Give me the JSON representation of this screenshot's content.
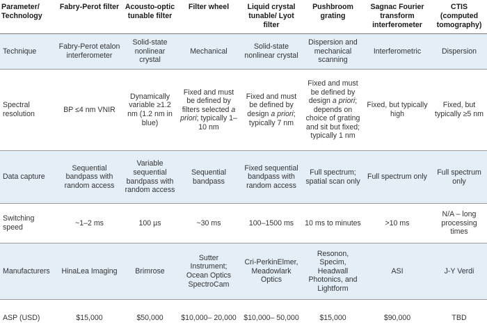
{
  "headers": [
    "Parameter/ Technology",
    "Fabry-Perot filter",
    "Acousto-optic tunable filter",
    "Filter wheel",
    "Liquid crystal tunable/ Lyot filter",
    "Pushbroom grating",
    "Sagnac Fourier transform interferometer",
    "CTIS (computed tomography)"
  ],
  "rows": [
    {
      "label": "Technique",
      "cells": [
        "Fabry-Perot etalon interferometer",
        "Solid-state nonlinear crystal",
        "Mechanical",
        "Solid-state nonlinear crystal",
        "Dispersion and mechanical scanning",
        "Interferometric",
        "Dispersion"
      ]
    },
    {
      "label": "Spectral resolution",
      "cells": [
        "BP ≤4 nm VNIR",
        "Dynamically variable ≥1.2 nm (1.2 nm in blue)",
        "Fixed and must be defined by filters selected a priori; typically 1–10 nm",
        "Fixed and must be defined by design a priori; typically 7 nm",
        "Fixed and must be defined by design a priori; depends on choice of grating and sit but fixed; typically 1 nm",
        "Fixed, but typically high",
        "Fixed, but typically ≥5 nm"
      ]
    },
    {
      "label": "Data capture",
      "cells": [
        "Sequential bandpass with random access",
        "Variable sequential bandpass with random access",
        "Sequential bandpass",
        "Fixed sequential bandpass with random access",
        "Full spectrum; spatial scan only",
        "Full spectrum only",
        "Full spectrum only"
      ]
    },
    {
      "label": "Switching speed",
      "cells": [
        "~1–2 ms",
        "100 µs",
        "~30 ms",
        "100–1500 ms",
        "10 ms to minutes",
        ">10 ms",
        "N/A – long processing times"
      ]
    },
    {
      "label": "Manufacturers",
      "cells": [
        "HinaLea Imaging",
        "Brimrose",
        "Sutter Instrument; Ocean Optics SpectroCam",
        "Cri-PerkinElmer, Meadowlark Optics",
        "Resonon, Specim, Headwall Photonics, and Lightform",
        "ASI",
        "J-Y Verdi"
      ]
    },
    {
      "label": "ASP (USD)",
      "cells": [
        "$15,000",
        "$50,000",
        "$10,000– 20,000",
        "$10,000– 50,000",
        "$15,000",
        "$90,000",
        "TBD"
      ]
    }
  ],
  "colors": {
    "shade": "#e3eef7",
    "text": "#333333",
    "rule": "#9a9a9a"
  }
}
